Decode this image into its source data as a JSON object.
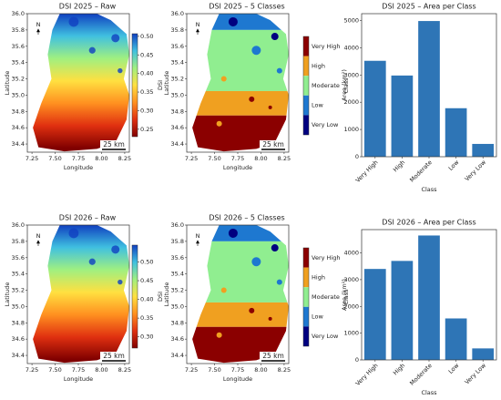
{
  "chart_data": [
    {
      "type": "map",
      "title": "DSI 2025 – Raw",
      "xlabel": "Longitude",
      "ylabel": "Latitude",
      "xlim": [
        7.2,
        8.3
      ],
      "ylim": [
        34.3,
        36.0
      ],
      "xticks": [
        {
          "value": 7.25,
          "label": "7.25"
        },
        {
          "value": 7.5,
          "label": "7.50"
        },
        {
          "value": 7.75,
          "label": "7.75"
        },
        {
          "value": 8,
          "label": "8.00"
        },
        {
          "value": 8.25,
          "label": "8.25"
        }
      ],
      "yticks": [
        34.4,
        34.6,
        34.8,
        {
          "value": 35,
          "label": "35.0"
        },
        35.2,
        35.4,
        35.6,
        35.8,
        {
          "value": 36,
          "label": "36.0"
        }
      ],
      "north": "N",
      "scale_bar": "25 km",
      "colorbar": {
        "label": "DSI",
        "lim": [
          0.23,
          0.507
        ],
        "ticks": [
          0.25,
          {
            "value": 0.3,
            "label": "0.30"
          },
          0.35,
          {
            "value": 0.4,
            "label": "0.40"
          },
          0.45,
          {
            "value": 0.5,
            "label": "0.50"
          }
        ],
        "colors": [
          "#800000",
          "#e03010",
          "#ff9020",
          "#ffe040",
          "#a0f080",
          "#40c0e0",
          "#1040c0"
        ]
      }
    },
    {
      "type": "classmap",
      "title": "DSI 2025 – 5 Classes",
      "xlabel": "Longitude",
      "ylabel": "Latitude",
      "xlim": [
        7.2,
        8.3
      ],
      "ylim": [
        34.3,
        36.0
      ],
      "xticks": [
        {
          "value": 7.25,
          "label": "7.25"
        },
        {
          "value": 7.5,
          "label": "7.50"
        },
        {
          "value": 7.75,
          "label": "7.75"
        },
        {
          "value": 8,
          "label": "8.00"
        },
        {
          "value": 8.25,
          "label": "8.25"
        }
      ],
      "yticks": [
        34.4,
        34.6,
        34.8,
        {
          "value": 35,
          "label": "35.0"
        },
        35.2,
        35.4,
        35.6,
        35.8,
        {
          "value": 36,
          "label": "36.0"
        }
      ],
      "north": "N",
      "scale_bar": "25 km",
      "colorbar": {
        "label": "Class",
        "classes": [
          "Very High",
          "High",
          "Moderate",
          "Low",
          "Very Low"
        ],
        "colors": [
          "#8b0000",
          "#f0a020",
          "#90ee90",
          "#1e78d0",
          "#000080"
        ]
      }
    },
    {
      "type": "bar",
      "title": "DSI 2025 – Area per Class",
      "xlabel": "Class",
      "ylabel": "Area (km²)",
      "categories": [
        "Very High",
        "High",
        "Moderate",
        "Low",
        "Very Low"
      ],
      "values": [
        3520,
        2980,
        4980,
        1780,
        470
      ],
      "color": "#2e75b6",
      "ylim": [
        0,
        5250
      ],
      "yticks": [
        0,
        1000,
        2000,
        3000,
        4000,
        5000
      ]
    },
    {
      "type": "map",
      "title": "DSI 2026 – Raw",
      "xlabel": "Longitude",
      "ylabel": "Latitude",
      "xlim": [
        7.2,
        8.3
      ],
      "ylim": [
        34.3,
        36.0
      ],
      "xticks": [
        {
          "value": 7.25,
          "label": "7.25"
        },
        {
          "value": 7.5,
          "label": "7.50"
        },
        {
          "value": 7.75,
          "label": "7.75"
        },
        {
          "value": 8,
          "label": "8.00"
        },
        {
          "value": 8.25,
          "label": "8.25"
        }
      ],
      "yticks": [
        34.4,
        34.6,
        34.8,
        {
          "value": 35,
          "label": "35.0"
        },
        35.2,
        35.4,
        35.6,
        35.8,
        {
          "value": 36,
          "label": "36.0"
        }
      ],
      "north": "N",
      "scale_bar": "25 km",
      "colorbar": {
        "label": "DSI",
        "lim": [
          0.27,
          0.545
        ],
        "ticks": [
          {
            "value": 0.3,
            "label": "0.30"
          },
          0.35,
          {
            "value": 0.4,
            "label": "0.40"
          },
          0.45,
          {
            "value": 0.5,
            "label": "0.50"
          }
        ],
        "colors": [
          "#800000",
          "#e03010",
          "#ff9020",
          "#ffe040",
          "#a0f080",
          "#40c0e0",
          "#1040c0"
        ]
      }
    },
    {
      "type": "classmap",
      "title": "DSI 2026 – 5 Classes",
      "xlabel": "Longitude",
      "ylabel": "Latitude",
      "xlim": [
        7.2,
        8.3
      ],
      "ylim": [
        34.3,
        36.0
      ],
      "xticks": [
        {
          "value": 7.25,
          "label": "7.25"
        },
        {
          "value": 7.5,
          "label": "7.50"
        },
        {
          "value": 7.75,
          "label": "7.75"
        },
        {
          "value": 8,
          "label": "8.00"
        },
        {
          "value": 8.25,
          "label": "8.25"
        }
      ],
      "yticks": [
        34.4,
        34.6,
        34.8,
        {
          "value": 35,
          "label": "35.0"
        },
        35.2,
        35.4,
        35.6,
        35.8,
        {
          "value": 36,
          "label": "36.0"
        }
      ],
      "north": "N",
      "scale_bar": "25 km",
      "colorbar": {
        "label": "Class",
        "classes": [
          "Very High",
          "High",
          "Moderate",
          "Low",
          "Very Low"
        ],
        "colors": [
          "#8b0000",
          "#f0a020",
          "#90ee90",
          "#1e78d0",
          "#000080"
        ]
      }
    },
    {
      "type": "bar",
      "title": "DSI 2026 – Area per Class",
      "xlabel": "Class",
      "ylabel": "Area (km²)",
      "categories": [
        "Very High",
        "High",
        "Moderate",
        "Low",
        "Very Low"
      ],
      "values": [
        3400,
        3700,
        4650,
        1550,
        430
      ],
      "color": "#2e75b6",
      "ylim": [
        0,
        4870
      ],
      "yticks": [
        0,
        1000,
        2000,
        3000,
        4000
      ]
    }
  ]
}
